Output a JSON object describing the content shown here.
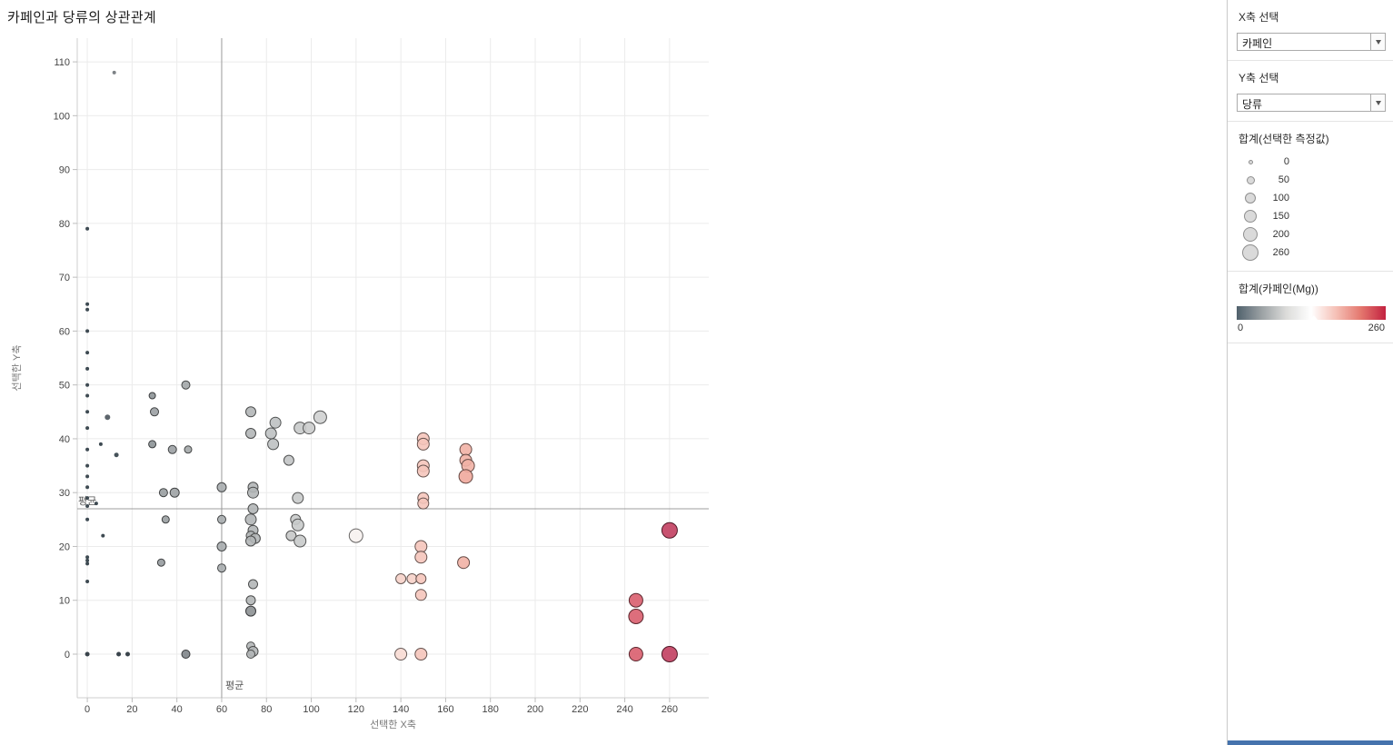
{
  "title": "카페인과 당류의 상관관계",
  "chart_data": {
    "type": "scatter",
    "xlabel": "선택한 X축",
    "ylabel": "선택한 Y축",
    "x_ticks": [
      0,
      20,
      40,
      60,
      80,
      100,
      120,
      140,
      160,
      180,
      200,
      220,
      240,
      260
    ],
    "y_ticks": [
      0,
      10,
      20,
      30,
      40,
      50,
      60,
      70,
      80,
      90,
      100,
      110
    ],
    "xlim": [
      -4.5,
      277.5
    ],
    "ylim": [
      -8.1,
      114.4
    ],
    "grid": true,
    "ref_lines": {
      "x": {
        "value": 60,
        "label": "평균"
      },
      "y": {
        "value": 27,
        "label": "평균"
      }
    },
    "points_format": [
      "x",
      "y",
      "radius_px",
      "fill"
    ],
    "points": [
      [
        0,
        79,
        2,
        "#3e4a52"
      ],
      [
        0,
        65,
        2,
        "#3e4a52"
      ],
      [
        0,
        64,
        2,
        "#3e4a52"
      ],
      [
        0,
        60,
        2,
        "#3e4a52"
      ],
      [
        0,
        56,
        2,
        "#3e4a52"
      ],
      [
        0,
        53,
        2,
        "#3e4a52"
      ],
      [
        0,
        50,
        2,
        "#3e4a52"
      ],
      [
        0,
        48,
        2,
        "#3e4a52"
      ],
      [
        0,
        45,
        2,
        "#3e4a52"
      ],
      [
        0,
        42,
        2,
        "#3e4a52"
      ],
      [
        0,
        38,
        2,
        "#3e4a52"
      ],
      [
        0,
        35,
        2,
        "#3e4a52"
      ],
      [
        0,
        33,
        2,
        "#3e4a52"
      ],
      [
        0,
        31,
        2,
        "#3e4a52"
      ],
      [
        0,
        29,
        2,
        "#3e4a52"
      ],
      [
        0,
        27.5,
        2,
        "#3e4a52"
      ],
      [
        0,
        25,
        2,
        "#3e4a52"
      ],
      [
        0,
        18,
        2,
        "#3e4a52"
      ],
      [
        0,
        17.4,
        2,
        "#3e4a52"
      ],
      [
        0,
        16.8,
        2,
        "#3e4a52"
      ],
      [
        0,
        13.5,
        2,
        "#3e4a52"
      ],
      [
        0,
        0,
        2.5,
        "#39434b"
      ],
      [
        4,
        28,
        2,
        "#3e4a52"
      ],
      [
        7,
        22,
        2,
        "#3e4a52"
      ],
      [
        6,
        39,
        2,
        "#3e4a52"
      ],
      [
        12,
        108,
        2,
        "#7d8286"
      ],
      [
        9,
        44,
        3,
        "#5d656c"
      ],
      [
        13,
        37,
        2.5,
        "#46525a"
      ],
      [
        14,
        0,
        2.5,
        "#39434b"
      ],
      [
        18,
        0,
        2.5,
        "#39434b"
      ],
      [
        29,
        48,
        3.5,
        "#8d9397"
      ],
      [
        30,
        45,
        4.5,
        "#9ba0a3"
      ],
      [
        29,
        39,
        4,
        "#8d9397"
      ],
      [
        44,
        50,
        4.5,
        "#a3a7a9"
      ],
      [
        38,
        38,
        4.5,
        "#9ba0a3"
      ],
      [
        45,
        38,
        4,
        "#a3a7a9"
      ],
      [
        34,
        30,
        4.5,
        "#999ea1"
      ],
      [
        39,
        30,
        5,
        "#9ea3a5"
      ],
      [
        35,
        25,
        4,
        "#999ea1"
      ],
      [
        33,
        17,
        4,
        "#969b9e"
      ],
      [
        44,
        0,
        4.5,
        "#7f8589"
      ],
      [
        60,
        31,
        5,
        "#a9adaf"
      ],
      [
        60,
        25,
        4.5,
        "#a9adaf"
      ],
      [
        60,
        20,
        5,
        "#a9adaf"
      ],
      [
        60,
        16,
        4.5,
        "#a9adaf"
      ],
      [
        73,
        45,
        5.5,
        "#b3b6b7"
      ],
      [
        73,
        41,
        5.5,
        "#b3b6b7"
      ],
      [
        74,
        31,
        5.5,
        "#b3b6b7"
      ],
      [
        74,
        30,
        6,
        "#b3b6b7"
      ],
      [
        74,
        27,
        5.5,
        "#b3b6b7"
      ],
      [
        73,
        25,
        6,
        "#b3b6b7"
      ],
      [
        74,
        23,
        5.5,
        "#b3b6b7"
      ],
      [
        73,
        22,
        5,
        "#b3b6b7"
      ],
      [
        75,
        21.5,
        5.5,
        "#b3b6b7"
      ],
      [
        73,
        21,
        5.5,
        "#b3b6b7"
      ],
      [
        74,
        13,
        5,
        "#b3b6b7"
      ],
      [
        73,
        10,
        5,
        "#b3b6b7"
      ],
      [
        73,
        8,
        5.5,
        "#8d9194"
      ],
      [
        73,
        1.5,
        4.5,
        "#b3b6b7"
      ],
      [
        74,
        0.5,
        5.5,
        "#b3b6b7"
      ],
      [
        73,
        0,
        4.5,
        "#b3b6b7"
      ],
      [
        84,
        43,
        6,
        "#bec1c2"
      ],
      [
        82,
        41,
        6,
        "#bec1c2"
      ],
      [
        83,
        39,
        6,
        "#bec1c2"
      ],
      [
        90,
        36,
        5.5,
        "#c2c4c5"
      ],
      [
        95,
        42,
        6.5,
        "#c8caca"
      ],
      [
        99,
        42,
        6.5,
        "#cbcccc"
      ],
      [
        104,
        44,
        7,
        "#cfd0d0"
      ],
      [
        94,
        29,
        6,
        "#c8caca"
      ],
      [
        93,
        25,
        5.5,
        "#c8caca"
      ],
      [
        94,
        24,
        6.5,
        "#c8caca"
      ],
      [
        91,
        22,
        5.5,
        "#c6c8c8"
      ],
      [
        95,
        21,
        6.5,
        "#c8caca"
      ],
      [
        120,
        22,
        7.5,
        "#f7f2f0"
      ],
      [
        140,
        14,
        5.5,
        "#f6d2c9"
      ],
      [
        145,
        14,
        5.5,
        "#f6d2c9"
      ],
      [
        140,
        0,
        6.5,
        "#f8dcd4"
      ],
      [
        150,
        40,
        6.5,
        "#f5c5bb"
      ],
      [
        150,
        39,
        6.5,
        "#f5c5bb"
      ],
      [
        150,
        35,
        6.5,
        "#f5c5bb"
      ],
      [
        150,
        34,
        6.5,
        "#f5c5bb"
      ],
      [
        150,
        29,
        6,
        "#f5c5bb"
      ],
      [
        150,
        28,
        6,
        "#f5c5bb"
      ],
      [
        149,
        20,
        6.5,
        "#f5c5bb"
      ],
      [
        149,
        18,
        6.5,
        "#f5c5bb"
      ],
      [
        149,
        14,
        5.5,
        "#f5c5bb"
      ],
      [
        149,
        11,
        6,
        "#f5c5bb"
      ],
      [
        149,
        0,
        6.5,
        "#f5c5bb"
      ],
      [
        169,
        38,
        6.5,
        "#f1b1a5"
      ],
      [
        169,
        36,
        6.5,
        "#f1b1a5"
      ],
      [
        170,
        35,
        7,
        "#f1b1a5"
      ],
      [
        169,
        33,
        7.5,
        "#efa89c"
      ],
      [
        168,
        17,
        6.5,
        "#f1b1a5"
      ],
      [
        245,
        10,
        7.5,
        "#d95e6e"
      ],
      [
        245,
        7,
        8,
        "#d95e6e"
      ],
      [
        245,
        0,
        7.5,
        "#d95e6e"
      ],
      [
        260,
        23,
        8.5,
        "#c23f60"
      ],
      [
        260,
        0,
        8.5,
        "#c23f60"
      ]
    ]
  },
  "sidebar": {
    "x_axis_card": {
      "label": "X축 선택",
      "value": "카페인"
    },
    "y_axis_card": {
      "label": "Y축 선택",
      "value": "당류"
    },
    "size_legend": {
      "title": "합계(선택한 측정값)",
      "items": [
        {
          "label": "0",
          "r": 1.5
        },
        {
          "label": "50",
          "r": 3.5
        },
        {
          "label": "100",
          "r": 5
        },
        {
          "label": "150",
          "r": 6
        },
        {
          "label": "200",
          "r": 7
        },
        {
          "label": "260",
          "r": 8
        }
      ]
    },
    "color_legend": {
      "title": "합계(카페인(Mg))",
      "min_label": "0",
      "max_label": "260",
      "gradient": [
        "#50616c",
        "#9ba1a4",
        "#dcdcda",
        "#ffffff",
        "#f5c0b6",
        "#e4776e",
        "#c32240"
      ]
    }
  },
  "colors": {
    "ref_line": "#9c9c9c",
    "gridline": "#ebebeb",
    "axis_line": "#cfcfcf",
    "scrollbar_thumb": "#4573ad"
  }
}
